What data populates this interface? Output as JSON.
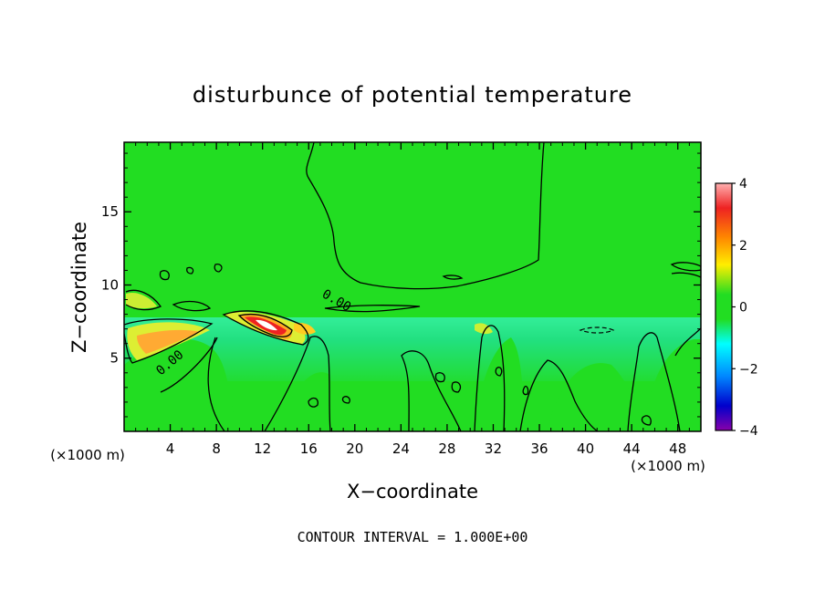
{
  "chart_data": {
    "type": "heatmap",
    "title": "disturbunce of potential temperature",
    "xlabel": "X−coordinate",
    "ylabel": "Z−coordinate",
    "x_unit_label": "(×1000 m)",
    "y_unit_label": "(×1000 m)",
    "xlim": [
      0,
      50
    ],
    "ylim": [
      0,
      19.75
    ],
    "x_ticks": [
      4,
      8,
      12,
      16,
      20,
      24,
      28,
      32,
      36,
      40,
      44,
      48
    ],
    "y_ticks": [
      5,
      10,
      15
    ],
    "colorbar": {
      "range": [
        -4,
        4
      ],
      "ticks": [
        4,
        2,
        0,
        -2,
        -4
      ],
      "tick_labels": [
        "4",
        "2",
        "0",
        "−2",
        "−4"
      ]
    },
    "contour_label": "0.00",
    "contour_interval_text": "CONTOUR INTERVAL = 1.000E+00",
    "warm_anomalies": [
      {
        "x": 4.5,
        "z": 6.3,
        "value": 1.8
      },
      {
        "x": 13.0,
        "z": 7.3,
        "value": 4.0
      },
      {
        "x": 16.0,
        "z": 6.8,
        "value": 1.5
      },
      {
        "x": 31.5,
        "z": 6.5,
        "value": 1.0
      },
      {
        "x": 1.5,
        "z": 9.5,
        "value": 1.2
      },
      {
        "x": 3.5,
        "z": 8.8,
        "value": 1.0
      }
    ],
    "cold_layer": {
      "z_min": 4.5,
      "z_max": 7.5,
      "value": -0.6
    }
  },
  "colors": {
    "background_field": "#22dd22",
    "cold_layer": "#33ee99",
    "warm_low": "#ddee22",
    "warm_mid": "#ffaa22",
    "warm_high": "#ee2222",
    "warm_peak": "#ffffff",
    "colorbar_stops": [
      "#ffaaaa",
      "#ee2222",
      "#ff8800",
      "#ffee00",
      "#22dd22",
      "#00ffff",
      "#0088ff",
      "#0000cc",
      "#8800aa"
    ]
  }
}
